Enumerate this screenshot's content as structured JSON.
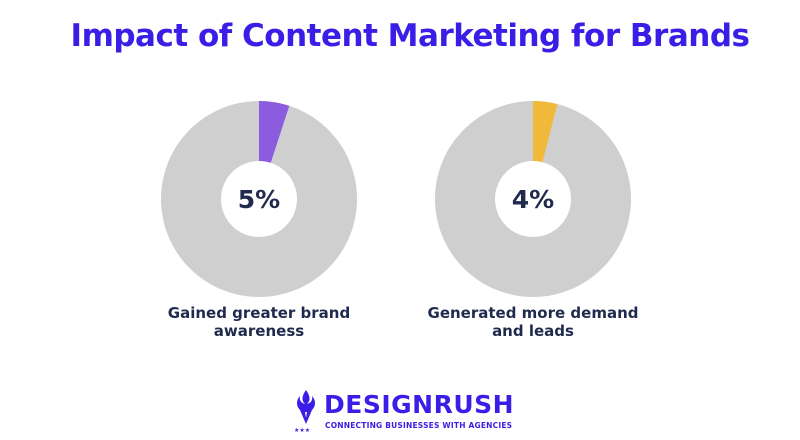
{
  "title": "Impact of Content Marketing for Brands",
  "chart_data": [
    {
      "type": "pie",
      "value": 5,
      "label": "5%",
      "caption_lines": [
        "Gained greater brand",
        "awareness"
      ],
      "colors": {
        "slice": "#8b5cde",
        "rest": "#cfcfcf"
      }
    },
    {
      "type": "pie",
      "value": 4,
      "label": "4%",
      "caption_lines": [
        "Generated more demand",
        "and leads"
      ],
      "colors": {
        "slice": "#f0b93a",
        "rest": "#cfcfcf"
      }
    }
  ],
  "logo": {
    "wordmark": "DESIGNRUSH",
    "tagline": "CONNECTING BUSINESSES WITH AGENCIES",
    "color": "#3a1de6"
  }
}
